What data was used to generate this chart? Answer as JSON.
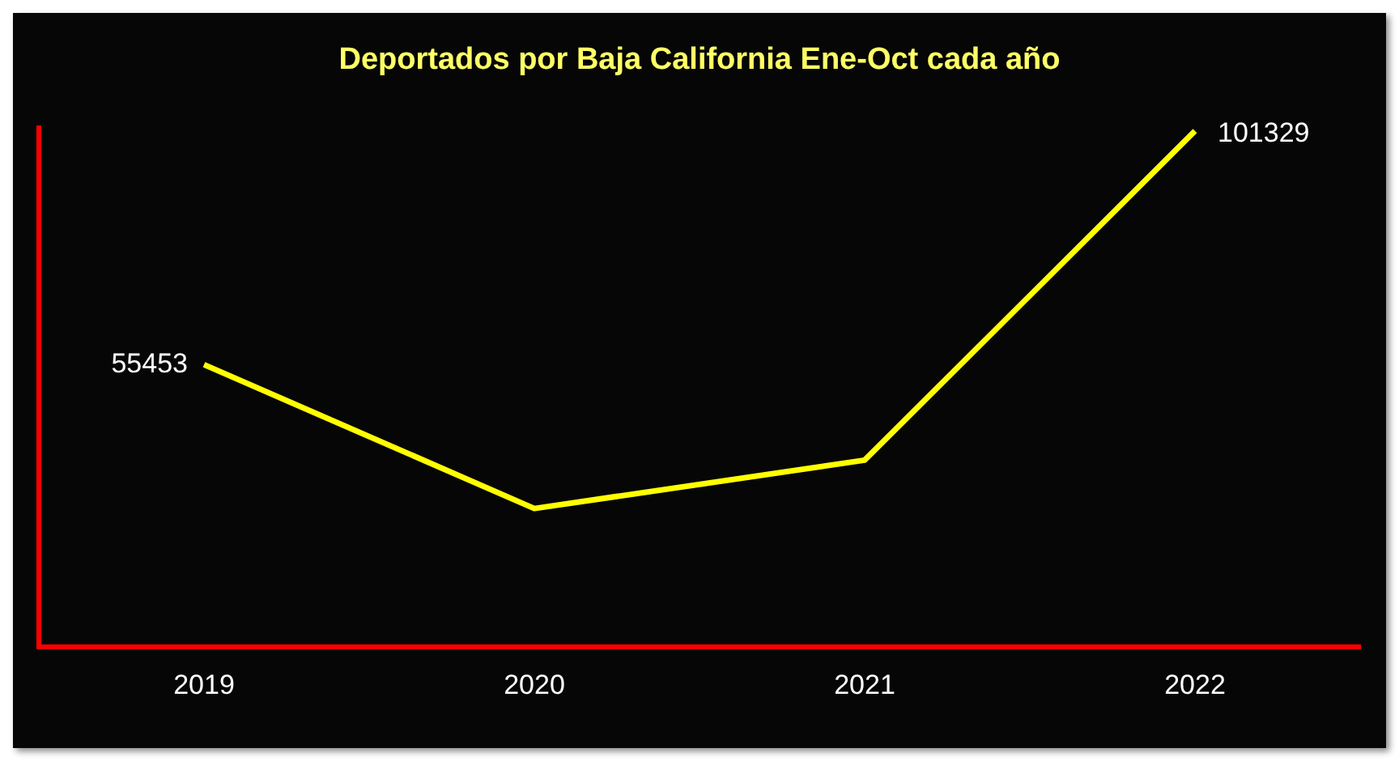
{
  "chart_data": {
    "type": "line",
    "title": "Deportados por Baja California Ene-Oct cada año",
    "categories": [
      "2019",
      "2020",
      "2021",
      "2022"
    ],
    "series": [
      {
        "color": "#ffff00",
        "values": [
          55453,
          27200,
          36700,
          101329
        ],
        "value_labels": [
          "55453",
          null,
          null,
          "101329"
        ]
      }
    ],
    "ylim": [
      0,
      102000
    ],
    "tick_labels": "x",
    "grid": false,
    "legend": false,
    "marker": "none",
    "line_style": "solid"
  }
}
